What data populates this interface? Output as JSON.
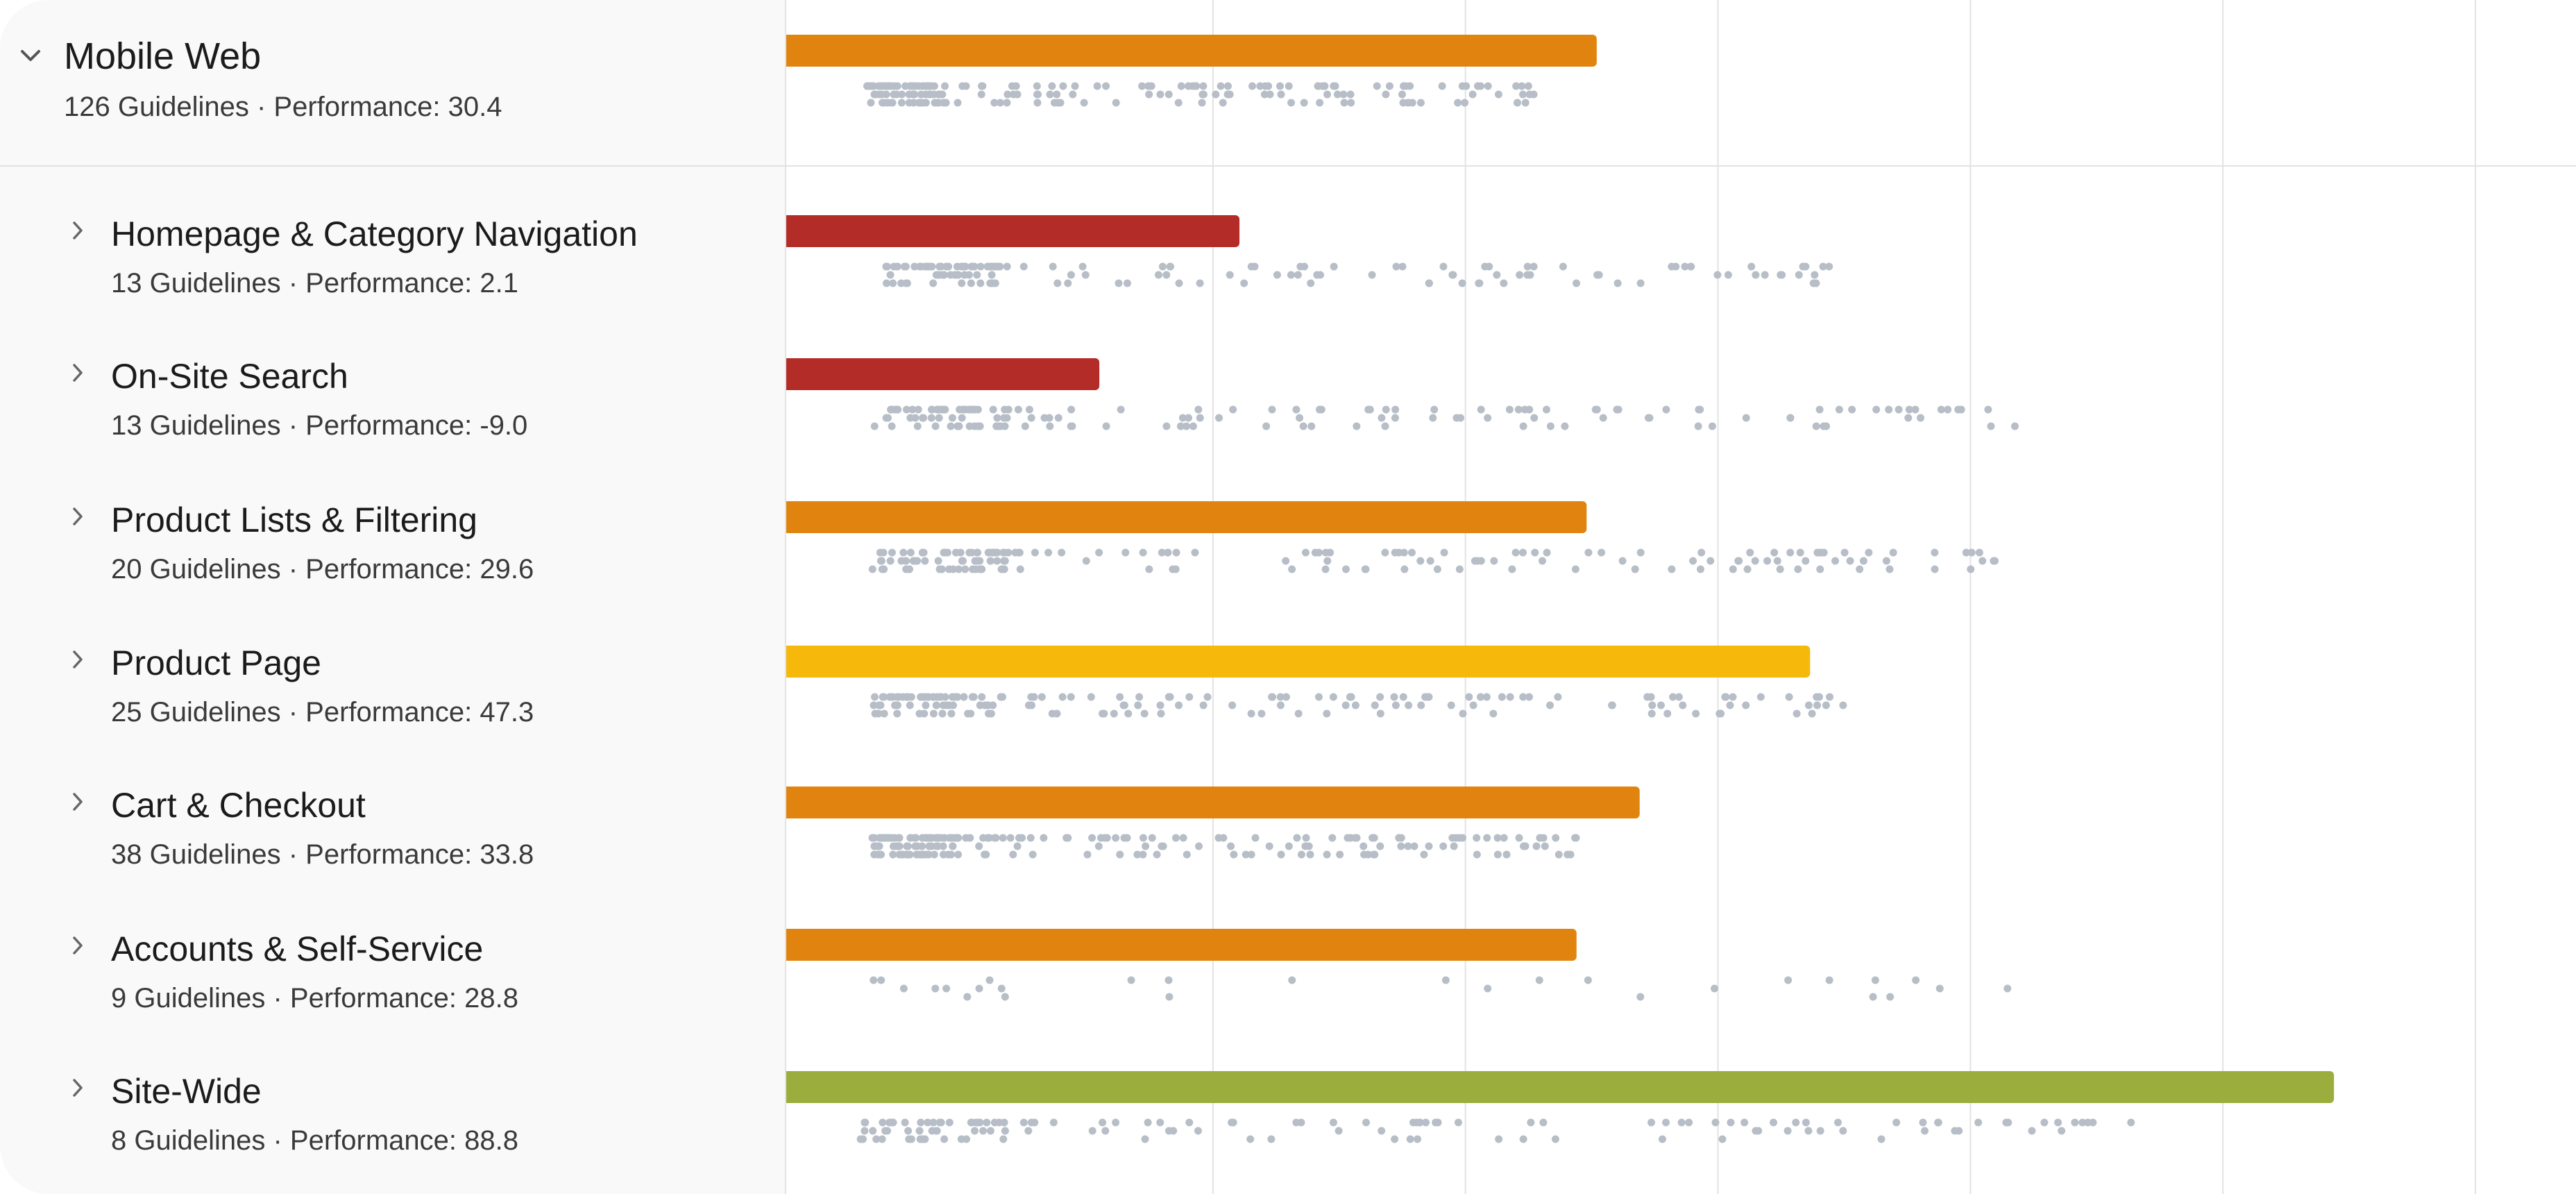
{
  "colors": {
    "red": "#b32c27",
    "orange": "#e1840f",
    "yellow": "#f6b80a",
    "green": "#9bad3c",
    "dot": "#b7bec7",
    "grid": "#e3e3e3"
  },
  "group": {
    "title": "Mobile Web",
    "subtitle": "126 Guidelines · Performance: 30.4",
    "expanded": true,
    "icon": "chevron-down-icon"
  },
  "categories": [
    {
      "title": "Homepage & Category Navigation",
      "subtitle": "13 Guidelines · Performance: 2.1",
      "icon": "chevron-right-icon"
    },
    {
      "title": "On-Site Search",
      "subtitle": "13 Guidelines · Performance: -9.0",
      "icon": "chevron-right-icon"
    },
    {
      "title": "Product Lists & Filtering",
      "subtitle": "20 Guidelines · Performance: 29.6",
      "icon": "chevron-right-icon"
    },
    {
      "title": "Product Page",
      "subtitle": "25 Guidelines · Performance: 47.3",
      "icon": "chevron-right-icon"
    },
    {
      "title": "Cart & Checkout",
      "subtitle": "38 Guidelines · Performance: 33.8",
      "icon": "chevron-right-icon"
    },
    {
      "title": "Accounts & Self-Service",
      "subtitle": "9 Guidelines · Performance: 28.8",
      "icon": "chevron-right-icon"
    },
    {
      "title": "Site-Wide",
      "subtitle": "8 Guidelines · Performance: 88.8",
      "icon": "chevron-right-icon"
    }
  ],
  "chart_data": {
    "type": "bar",
    "orientation": "horizontal",
    "grid": true,
    "xlim": [
      -33.8,
      100
    ],
    "gridlines": [
      0,
      20,
      40,
      60,
      80,
      100
    ],
    "categories": [
      "Mobile Web",
      "Homepage & Category Navigation",
      "On-Site Search",
      "Product Lists & Filtering",
      "Product Page",
      "Cart & Checkout",
      "Accounts & Self-Service",
      "Site-Wide"
    ],
    "values": [
      30.4,
      2.1,
      -9.0,
      29.6,
      47.3,
      33.8,
      28.8,
      88.8
    ],
    "bar_colors": [
      "orange",
      "red",
      "red",
      "orange",
      "yellow",
      "orange",
      "orange",
      "green"
    ],
    "dot_ranges": [
      [
        -27.5,
        26
      ],
      [
        -26,
        50
      ],
      [
        -27,
        64
      ],
      [
        -27,
        64
      ],
      [
        -27,
        52
      ],
      [
        -27,
        30
      ],
      [
        -27,
        63
      ],
      [
        -28,
        73
      ]
    ],
    "dot_counts": [
      190,
      150,
      150,
      170,
      170,
      200,
      28,
      130
    ]
  }
}
